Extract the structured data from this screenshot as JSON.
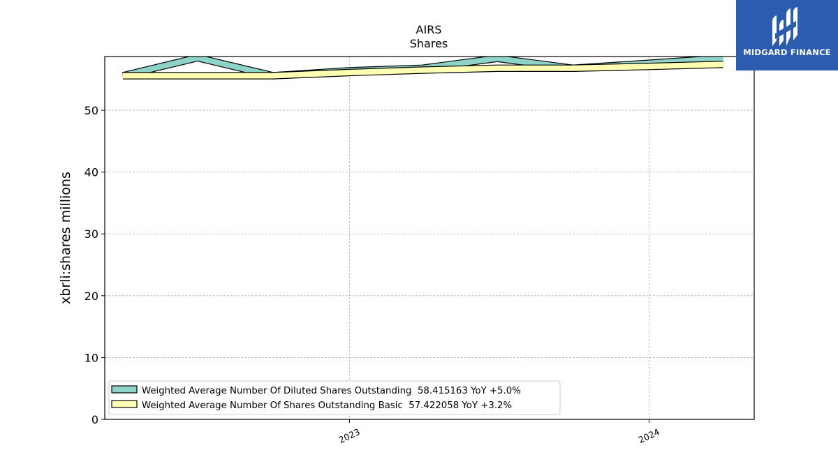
{
  "colors": {
    "diluted_fill": "#8dd3c7",
    "basic_fill": "#ffffb3",
    "outline": "#000000",
    "grid": "#b0b0b0",
    "logo_bg": "#2b5caf"
  },
  "logo": {
    "text": "MIDGARD FINANCE",
    "icon": "midgard-logo-icon"
  },
  "chart_data": {
    "type": "line",
    "title": "AIRS",
    "subtitle": "Shares",
    "xlabel": "",
    "ylabel": "xbrli:shares millions",
    "ylim": [
      0,
      58.7
    ],
    "yticks": [
      0,
      10,
      20,
      30,
      40,
      50
    ],
    "x_tick_labels": [
      "2023",
      "2024"
    ],
    "x_tick_dates": [
      "2023-01-01",
      "2024-01-01"
    ],
    "xlim": [
      "2022-03-09",
      "2024-05-08"
    ],
    "grid": true,
    "legend_position": "lower-left",
    "x": [
      "2022-03-31",
      "2022-06-30",
      "2022-09-30",
      "2022-12-31",
      "2023-03-31",
      "2023-06-30",
      "2023-09-30",
      "2023-12-31",
      "2024-03-31"
    ],
    "series": [
      {
        "name": "Weighted Average Number Of Diluted Shares Outstanding  58.415163 YoY +5.0%",
        "color": "#8dd3c7",
        "values": [
          55.6,
          58.5,
          55.6,
          56.4,
          56.8,
          58.4,
          56.8,
          57.6,
          58.415163
        ]
      },
      {
        "name": "Weighted Average Number Of Shares Outstanding Basic  57.422058 YoY +3.2%",
        "color": "#ffffb3",
        "values": [
          55.6,
          55.6,
          55.6,
          56.1,
          56.5,
          56.8,
          56.8,
          57.1,
          57.422058
        ]
      }
    ]
  }
}
